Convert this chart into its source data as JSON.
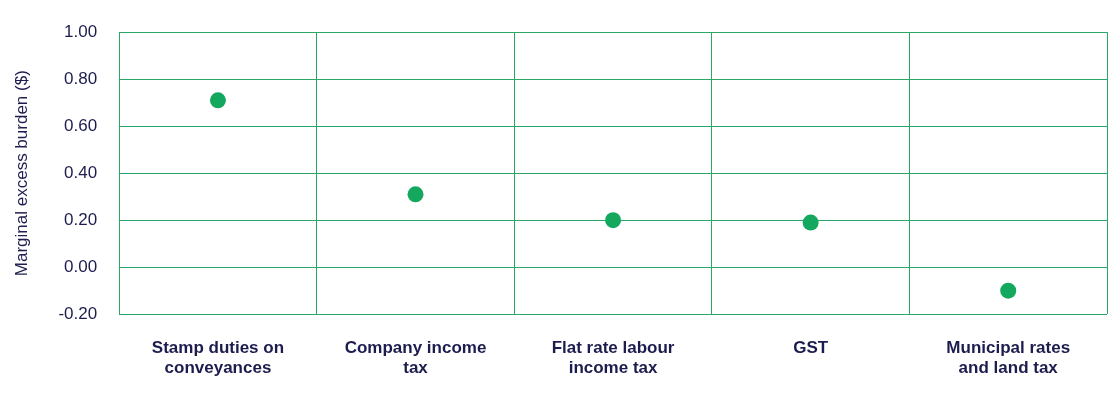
{
  "chart_data": {
    "type": "scatter",
    "ylabel": "Marginal excess burden ($)",
    "categories": [
      "Stamp duties on conveyances",
      "Company income tax",
      "Flat rate labour income tax",
      "GST",
      "Municipal rates and land tax"
    ],
    "values": [
      0.71,
      0.31,
      0.2,
      0.19,
      -0.1
    ],
    "color": "#14a85f",
    "marker": "circle",
    "ylim": [
      -0.2,
      1.0
    ],
    "yticks": [
      {
        "value": -0.2,
        "label": "-0.20"
      },
      {
        "value": 0,
        "label": "0.00"
      },
      {
        "value": 0.2,
        "label": "0.20"
      },
      {
        "value": 0.4,
        "label": "0.40"
      },
      {
        "value": 0.6,
        "label": "0.60"
      },
      {
        "value": 0.8,
        "label": "0.80"
      },
      {
        "value": 1.0,
        "label": "1.00"
      }
    ],
    "grid": true,
    "legend": false
  }
}
